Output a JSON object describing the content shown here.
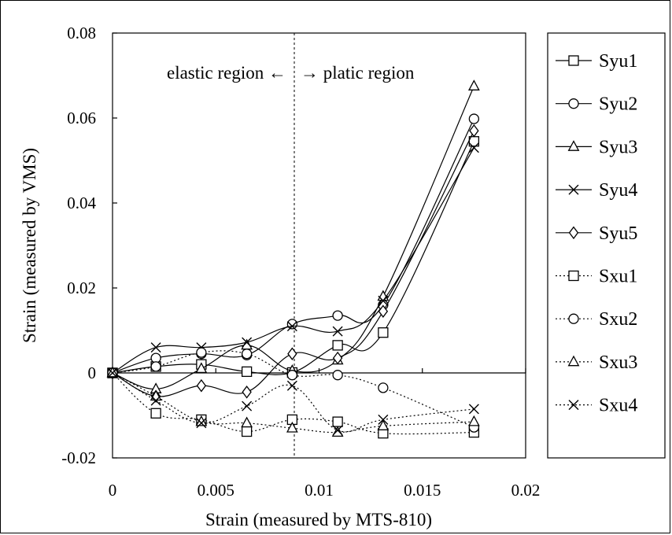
{
  "chart_data": {
    "type": "line",
    "xlabel": "Strain (measured by MTS-810)",
    "ylabel": "Strain (measured by VMS)",
    "xlim": [
      0,
      0.02
    ],
    "ylim": [
      -0.02,
      0.08
    ],
    "x_ticks": [
      "0",
      "0.005",
      "0.01",
      "0.015",
      "0.02"
    ],
    "y_ticks": [
      "-0.02",
      "0",
      "0.02",
      "0.04",
      "0.06",
      "0.08"
    ],
    "grid": false,
    "legend_position": "right",
    "annotations": {
      "elastic": "elastic region ←",
      "plastic": "→ platic region",
      "divider_x": 0.0088
    },
    "x": [
      0,
      0.0021,
      0.0043,
      0.0065,
      0.0087,
      0.0109,
      0.0131,
      0.0175
    ],
    "series": [
      {
        "name": "Syu1",
        "marker": "square",
        "dash": "solid",
        "values": [
          0,
          0.0015,
          0.002,
          0.0003,
          0.0001,
          0.0065,
          0.0095,
          0.0545
        ]
      },
      {
        "name": "Syu2",
        "marker": "circle",
        "dash": "solid",
        "values": [
          0,
          0.0035,
          0.0045,
          0.0042,
          0.0115,
          0.0135,
          0.016,
          0.0598
        ]
      },
      {
        "name": "Syu3",
        "marker": "triangle",
        "dash": "solid",
        "values": [
          0,
          -0.0038,
          0.001,
          0.0065,
          0.0005,
          0.003,
          0.018,
          0.0675
        ]
      },
      {
        "name": "Syu4",
        "marker": "x",
        "dash": "solid",
        "values": [
          0,
          0.006,
          0.006,
          0.0072,
          0.011,
          0.0098,
          0.017,
          0.053
        ]
      },
      {
        "name": "Syu5",
        "marker": "diamond",
        "dash": "solid",
        "values": [
          0,
          -0.0055,
          -0.003,
          -0.0045,
          0.0045,
          0.0035,
          0.0145,
          0.057
        ]
      },
      {
        "name": "Sxu1",
        "marker": "square",
        "dash": "dotted",
        "values": [
          0,
          -0.0095,
          -0.011,
          -0.0138,
          -0.011,
          -0.0115,
          -0.0142,
          -0.014
        ]
      },
      {
        "name": "Sxu2",
        "marker": "circle",
        "dash": "dotted",
        "values": [
          0,
          0.0015,
          0.0048,
          0.0045,
          -0.0005,
          -0.0005,
          -0.0035,
          -0.0128
        ]
      },
      {
        "name": "Sxu3",
        "marker": "triangle",
        "dash": "dotted",
        "values": [
          0,
          -0.0055,
          -0.0115,
          -0.0118,
          -0.013,
          -0.014,
          -0.0125,
          -0.0115
        ]
      },
      {
        "name": "Sxu4",
        "marker": "x",
        "dash": "dotted",
        "values": [
          0,
          -0.0065,
          -0.0118,
          -0.0078,
          -0.003,
          -0.0135,
          -0.011,
          -0.0085
        ]
      }
    ]
  }
}
